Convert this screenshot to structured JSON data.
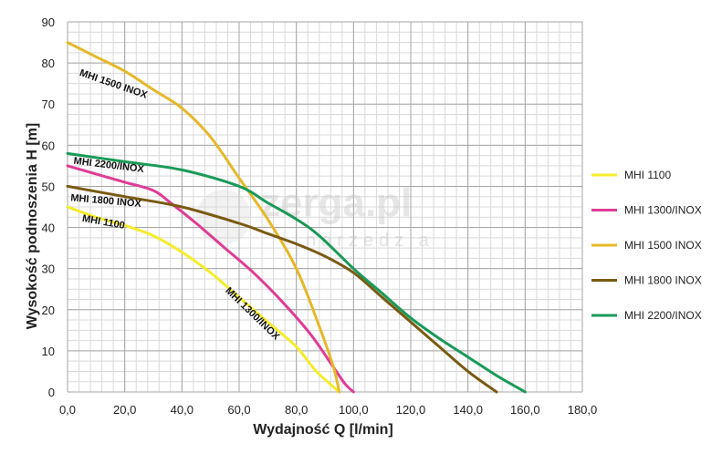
{
  "watermark": {
    "main": "zerga.pl",
    "sub": "narzedzia"
  },
  "chart_data": {
    "type": "line",
    "xlabel": "Wydajność Q [l/min]",
    "ylabel": "Wysokość podnoszenia H [m]",
    "xlim": [
      0,
      180
    ],
    "ylim": [
      0,
      90
    ],
    "x_ticks": [
      0,
      20,
      40,
      60,
      80,
      100,
      120,
      140,
      160,
      180
    ],
    "x_tick_labels": [
      "0,0",
      "20,0",
      "40,0",
      "60,0",
      "80,0",
      "100,0",
      "120,0",
      "140,0",
      "160,0",
      "180,0"
    ],
    "y_ticks": [
      0,
      10,
      20,
      30,
      40,
      50,
      60,
      70,
      80,
      90
    ],
    "y_tick_labels": [
      "0",
      "10",
      "20",
      "30",
      "40",
      "50",
      "60",
      "70",
      "80",
      "90"
    ],
    "grid": true,
    "legend_position": "right",
    "series": [
      {
        "name": "MHI 1100",
        "color": "#f5ec2c",
        "label": "MHI 1100",
        "points": [
          [
            0,
            45
          ],
          [
            10,
            42.5
          ],
          [
            20,
            40.5
          ],
          [
            30,
            38
          ],
          [
            40,
            34
          ],
          [
            50,
            29
          ],
          [
            60,
            23
          ],
          [
            70,
            17
          ],
          [
            80,
            11
          ],
          [
            87,
            5
          ],
          [
            95,
            0
          ]
        ]
      },
      {
        "name": "MHI 1300/INOX",
        "color": "#df3c96",
        "label": "MHI 1300/INOX",
        "points": [
          [
            0,
            55
          ],
          [
            10,
            53
          ],
          [
            20,
            51
          ],
          [
            30,
            49
          ],
          [
            36,
            46
          ],
          [
            45,
            41
          ],
          [
            55,
            35
          ],
          [
            65,
            29
          ],
          [
            75,
            22
          ],
          [
            85,
            14
          ],
          [
            92,
            7
          ],
          [
            97,
            2
          ],
          [
            100,
            0
          ]
        ]
      },
      {
        "name": "MHI 1500 INOX",
        "color": "#e6b82a",
        "label": "MHI 1500 INOX",
        "points": [
          [
            0,
            85
          ],
          [
            10,
            81.5
          ],
          [
            20,
            78
          ],
          [
            30,
            73.5
          ],
          [
            40,
            69
          ],
          [
            50,
            62
          ],
          [
            60,
            52
          ],
          [
            70,
            42
          ],
          [
            80,
            30
          ],
          [
            88,
            16
          ],
          [
            93,
            6
          ],
          [
            95,
            0
          ]
        ]
      },
      {
        "name": "MHI 1800 INOX",
        "color": "#7a5a12",
        "label": "MHI 1800 INOX",
        "points": [
          [
            0,
            50
          ],
          [
            20,
            47.5
          ],
          [
            40,
            45
          ],
          [
            60,
            41
          ],
          [
            70,
            38.5
          ],
          [
            80,
            36
          ],
          [
            90,
            33
          ],
          [
            100,
            29
          ],
          [
            110,
            23
          ],
          [
            120,
            17
          ],
          [
            130,
            11
          ],
          [
            140,
            5
          ],
          [
            150,
            0
          ]
        ]
      },
      {
        "name": "MHI 2200/INOX",
        "color": "#1a9a58",
        "label": "MHI 2200/INOX",
        "points": [
          [
            0,
            58
          ],
          [
            20,
            56
          ],
          [
            40,
            54
          ],
          [
            60,
            50
          ],
          [
            70,
            46
          ],
          [
            80,
            42
          ],
          [
            88,
            38
          ],
          [
            100,
            30
          ],
          [
            110,
            24
          ],
          [
            120,
            18
          ],
          [
            130,
            13
          ],
          [
            140,
            8.5
          ],
          [
            150,
            4
          ],
          [
            160,
            0
          ]
        ]
      }
    ],
    "curve_labels": [
      {
        "text": "MHI 1500 INOX",
        "x": 4,
        "y": 77,
        "angle": 19
      },
      {
        "text": "MHI 2200/INOX",
        "x": 2,
        "y": 55.5,
        "angle": 7
      },
      {
        "text": "MHI 1800 INOX",
        "x": 1,
        "y": 46.5,
        "angle": 5
      },
      {
        "text": "MHI 1100",
        "x": 5,
        "y": 41.5,
        "angle": 10
      },
      {
        "text": "MHI 1300/INOX",
        "x": 55,
        "y": 24.5,
        "angle": 44
      }
    ]
  }
}
